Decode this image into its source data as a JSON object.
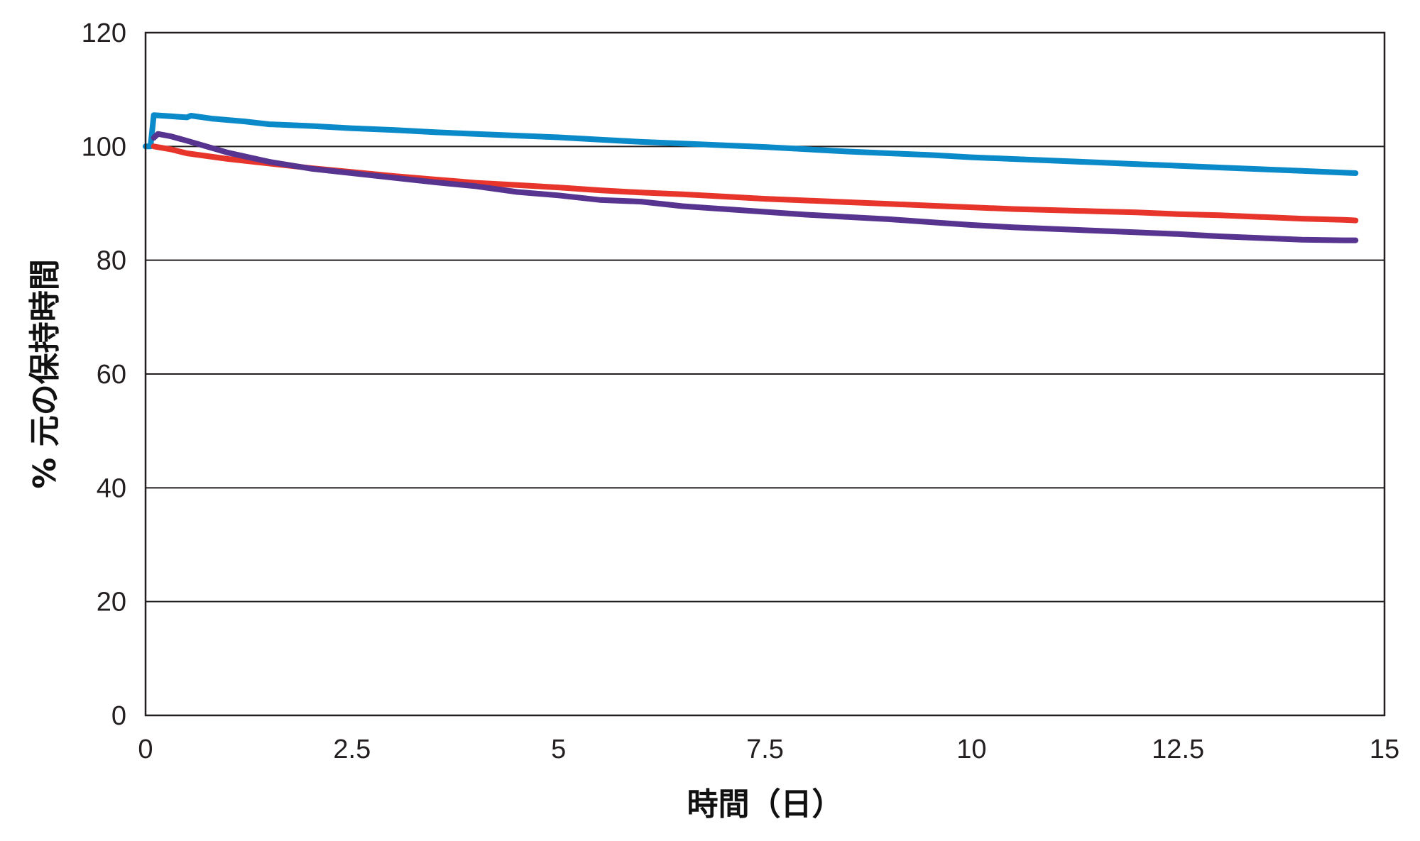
{
  "chart_data": {
    "type": "line",
    "title": "",
    "xlabel": "時間（日）",
    "ylabel": "% 元の保持時間",
    "xlim": [
      0,
      15
    ],
    "ylim": [
      0,
      120
    ],
    "x_ticks": [
      0,
      2.5,
      5,
      7.5,
      10,
      12.5,
      15
    ],
    "x_tick_labels": [
      "0",
      "2.5",
      "5",
      "7.5",
      "10",
      "12.5",
      "15"
    ],
    "y_ticks": [
      0,
      20,
      40,
      60,
      80,
      100,
      120
    ],
    "y_tick_labels": [
      "0",
      "20",
      "40",
      "60",
      "80",
      "100",
      "120"
    ],
    "grid": "horizontal",
    "legend": "none",
    "series": [
      {
        "color": "#0a8ac8",
        "x": [
          0,
          0.06,
          0.1,
          0.3,
          0.5,
          0.55,
          0.8,
          1.2,
          1.5,
          2.0,
          2.5,
          3.0,
          3.5,
          4.0,
          4.5,
          5.0,
          5.5,
          6.0,
          6.5,
          7.0,
          7.5,
          8.0,
          8.5,
          9.0,
          9.5,
          10.0,
          10.5,
          11.0,
          11.5,
          12.0,
          12.5,
          13.0,
          13.5,
          14.0,
          14.5,
          14.65
        ],
        "y": [
          100,
          100,
          105.5,
          105.3,
          105.1,
          105.4,
          104.9,
          104.4,
          103.9,
          103.6,
          103.2,
          102.9,
          102.5,
          102.2,
          101.9,
          101.6,
          101.2,
          100.8,
          100.5,
          100.2,
          99.9,
          99.5,
          99.1,
          98.8,
          98.5,
          98.1,
          97.8,
          97.5,
          97.2,
          96.9,
          96.6,
          96.3,
          96.0,
          95.7,
          95.4,
          95.3
        ]
      },
      {
        "color": "#e8352b",
        "x": [
          0.1,
          0.3,
          0.5,
          1.0,
          1.5,
          2.0,
          2.5,
          3.0,
          3.5,
          4.0,
          4.5,
          5.0,
          5.5,
          6.0,
          6.5,
          7.0,
          7.5,
          8.0,
          8.5,
          9.0,
          9.5,
          10.0,
          10.5,
          11.0,
          11.5,
          12.0,
          12.5,
          13.0,
          13.5,
          14.0,
          14.5,
          14.65
        ],
        "y": [
          100,
          99.5,
          98.8,
          97.8,
          97.0,
          96.2,
          95.5,
          94.8,
          94.2,
          93.6,
          93.2,
          92.8,
          92.3,
          91.9,
          91.6,
          91.2,
          90.8,
          90.5,
          90.2,
          89.9,
          89.6,
          89.3,
          89.0,
          88.8,
          88.6,
          88.4,
          88.1,
          87.9,
          87.6,
          87.3,
          87.1,
          87.0
        ]
      },
      {
        "color": "#57348f",
        "x": [
          0.1,
          0.15,
          0.3,
          0.5,
          1.0,
          1.5,
          2.0,
          2.5,
          3.0,
          3.5,
          4.0,
          4.5,
          5.0,
          5.5,
          6.0,
          6.5,
          7.0,
          7.5,
          8.0,
          8.5,
          9.0,
          9.5,
          10.0,
          10.5,
          11.0,
          11.5,
          12.0,
          12.5,
          13.0,
          13.5,
          14.0,
          14.5,
          14.65
        ],
        "y": [
          101.5,
          102.2,
          101.8,
          101.0,
          98.9,
          97.3,
          96.1,
          95.3,
          94.5,
          93.7,
          93.0,
          92.0,
          91.4,
          90.6,
          90.3,
          89.5,
          89.0,
          88.5,
          88.0,
          87.6,
          87.2,
          86.7,
          86.2,
          85.8,
          85.5,
          85.2,
          84.9,
          84.6,
          84.2,
          83.9,
          83.6,
          83.5,
          83.5
        ]
      }
    ]
  }
}
